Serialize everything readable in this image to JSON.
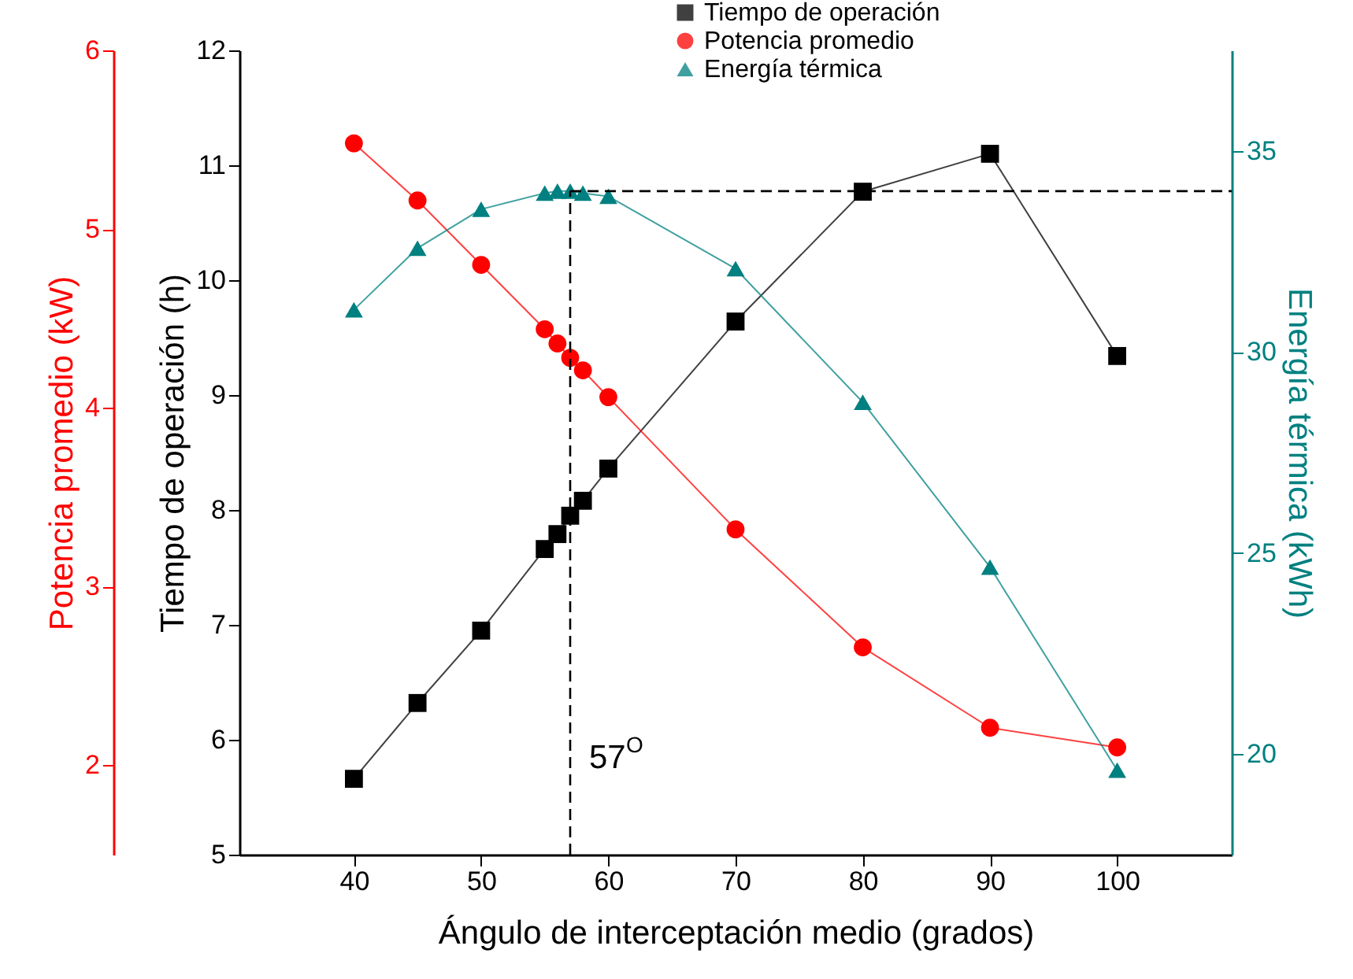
{
  "chart_data": {
    "type": "line",
    "xlabel": "Ángulo de interceptación medio (grados)",
    "ylabel": "Tiempo de operación (h)",
    "y2label": "Energía térmica (kWh)",
    "y3label": "Potencia promedio (kW)",
    "x": [
      40,
      45,
      50,
      55,
      56,
      57,
      58,
      60,
      70,
      80,
      90,
      100
    ],
    "xlim": [
      31,
      109
    ],
    "xticks": [
      40,
      50,
      60,
      70,
      80,
      90,
      100
    ],
    "ylim": [
      5,
      12
    ],
    "yticks": [
      5,
      6,
      7,
      8,
      9,
      10,
      11,
      12
    ],
    "y2lim": [
      17.5,
      37.5
    ],
    "y2ticks": [
      20,
      25,
      30,
      35
    ],
    "y3lim": [
      1.5,
      6
    ],
    "y3ticks": [
      2,
      3,
      4,
      5,
      6
    ],
    "series": [
      {
        "name": "Tiempo de operación",
        "color": "#000000",
        "marker": "square",
        "values": [
          5.66,
          6.32,
          6.95,
          7.66,
          7.79,
          7.95,
          8.08,
          8.36,
          9.64,
          10.77,
          11.1,
          9.34
        ]
      },
      {
        "name": "Potencia promedio",
        "color": "#ff0000",
        "marker": "circle",
        "axis": "y3",
        "values": [
          5.48,
          5.16,
          4.8,
          4.44,
          4.36,
          4.28,
          4.21,
          4.06,
          3.32,
          2.66,
          2.21,
          2.1
        ]
      },
      {
        "name": "Energía térmica",
        "color": "#008080",
        "marker": "triangle",
        "axis": "y2",
        "values": [
          31.05,
          32.58,
          33.55,
          33.95,
          34.0,
          34.0,
          33.95,
          33.87,
          32.07,
          28.75,
          24.65,
          19.6
        ]
      }
    ],
    "ref_lines": [
      {
        "axis": "x",
        "value": 57,
        "label": "57$^{O}$",
        "line_style": "dashed",
        "color": "#000000"
      },
      {
        "axis": "y2",
        "value": 34,
        "line_style": "dashed",
        "color": "#000000"
      }
    ],
    "line_style": "solid",
    "grid": false,
    "legend": "top"
  }
}
